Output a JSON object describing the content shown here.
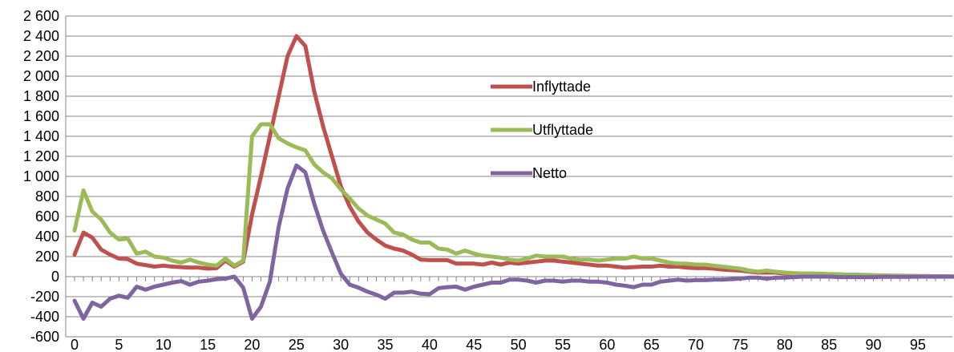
{
  "chart_data": {
    "type": "line",
    "title": "",
    "xlabel": "",
    "ylabel": "",
    "xlim": [
      0,
      99
    ],
    "ylim": [
      -600,
      2600
    ],
    "x_ticks": [
      0,
      5,
      10,
      15,
      20,
      25,
      30,
      35,
      40,
      45,
      50,
      55,
      60,
      65,
      70,
      75,
      80,
      85,
      90,
      95
    ],
    "y_ticks": [
      -600,
      -400,
      -200,
      0,
      200,
      400,
      600,
      800,
      1000,
      1200,
      1400,
      1600,
      1800,
      2000,
      2200,
      2400,
      2600
    ],
    "y_tick_labels": [
      "-600",
      "-400",
      "-200",
      "0",
      "200",
      "400",
      "600",
      "800",
      "1 000",
      "1 200",
      "1 400",
      "1 600",
      "1 800",
      "2 000",
      "2 200",
      "2 400",
      "2 600"
    ],
    "grid": "horizontal",
    "legend_position": "center",
    "series": [
      {
        "name": "Inflyttade",
        "color": "#c0504d",
        "values": [
          220,
          440,
          390,
          270,
          220,
          180,
          175,
          130,
          115,
          100,
          110,
          100,
          95,
          90,
          90,
          80,
          85,
          160,
          100,
          150,
          620,
          1000,
          1400,
          1800,
          2200,
          2400,
          2300,
          1850,
          1500,
          1200,
          900,
          700,
          550,
          440,
          370,
          310,
          280,
          260,
          220,
          170,
          165,
          165,
          165,
          130,
          130,
          130,
          120,
          140,
          120,
          140,
          130,
          140,
          150,
          160,
          160,
          150,
          140,
          130,
          120,
          110,
          110,
          100,
          90,
          95,
          100,
          100,
          110,
          100,
          100,
          90,
          85,
          85,
          80,
          70,
          65,
          60,
          50,
          40,
          40,
          40,
          30,
          30,
          30,
          30,
          25,
          20,
          20,
          15,
          15,
          12,
          10,
          10,
          8,
          8,
          6,
          5,
          5,
          3,
          2,
          1
        ]
      },
      {
        "name": "Utflyttade",
        "color": "#9bbb59",
        "values": [
          460,
          860,
          650,
          570,
          440,
          370,
          380,
          230,
          250,
          200,
          190,
          160,
          140,
          170,
          140,
          120,
          110,
          180,
          110,
          160,
          1400,
          1520,
          1520,
          1380,
          1330,
          1290,
          1260,
          1120,
          1040,
          980,
          870,
          780,
          680,
          610,
          570,
          530,
          440,
          420,
          370,
          340,
          340,
          280,
          270,
          230,
          260,
          230,
          210,
          200,
          190,
          170,
          160,
          180,
          210,
          200,
          200,
          200,
          180,
          170,
          170,
          160,
          170,
          180,
          180,
          200,
          180,
          180,
          160,
          140,
          130,
          130,
          120,
          120,
          110,
          100,
          90,
          80,
          60,
          50,
          60,
          50,
          40,
          35,
          30,
          30,
          30,
          25,
          25,
          20,
          20,
          18,
          15,
          12,
          10,
          10,
          8,
          6,
          5,
          4,
          3,
          2
        ]
      },
      {
        "name": "Netto",
        "color": "#8064a2",
        "values": [
          -240,
          -420,
          -260,
          -300,
          -220,
          -190,
          -210,
          -100,
          -130,
          -100,
          -80,
          -60,
          -45,
          -80,
          -50,
          -40,
          -25,
          -20,
          0,
          -110,
          -420,
          -300,
          -50,
          500,
          880,
          1110,
          1040,
          730,
          460,
          240,
          30,
          -80,
          -110,
          -150,
          -180,
          -220,
          -160,
          -160,
          -150,
          -170,
          -175,
          -115,
          -105,
          -100,
          -130,
          -100,
          -80,
          -60,
          -60,
          -30,
          -30,
          -40,
          -60,
          -40,
          -40,
          -50,
          -40,
          -40,
          -50,
          -50,
          -60,
          -80,
          -90,
          -105,
          -80,
          -80,
          -50,
          -40,
          -30,
          -40,
          -35,
          -35,
          -30,
          -30,
          -25,
          -20,
          -10,
          -10,
          -20,
          -10,
          -10,
          -5,
          0,
          0,
          0,
          0,
          -5,
          -5,
          -5,
          -6,
          -5,
          -2,
          -2,
          -2,
          -2,
          -1,
          0,
          -1,
          0,
          -1
        ]
      }
    ]
  }
}
